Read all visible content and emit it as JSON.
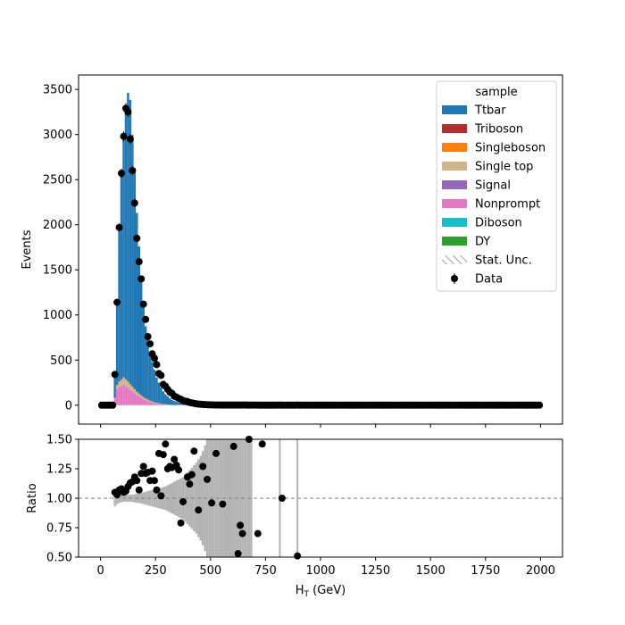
{
  "chart_data": [
    {
      "type": "bar",
      "stacked": true,
      "ylabel": "Events",
      "xlim": [
        -100,
        2100
      ],
      "ylim": [
        -210,
        3660
      ],
      "xticks": [
        0,
        250,
        500,
        750,
        1000,
        1250,
        1500,
        1750,
        2000
      ],
      "yticks": [
        0,
        500,
        1000,
        1500,
        2000,
        2500,
        3000,
        3500
      ],
      "bin_width": 10,
      "bin_centers": [
        65,
        75,
        85,
        95,
        105,
        115,
        125,
        135,
        145,
        155,
        165,
        175,
        185,
        195,
        205,
        215,
        225,
        235,
        245,
        255,
        265,
        275,
        285,
        295,
        305,
        315,
        325,
        335,
        345,
        355,
        365,
        375,
        385,
        395
      ],
      "series": [
        {
          "name": "Nonprompt",
          "color": "#e377c2",
          "values": [
            70,
            180,
            200,
            210,
            230,
            210,
            190,
            170,
            150,
            130,
            110,
            95,
            80,
            65,
            55,
            45,
            37,
            30,
            24,
            19,
            15,
            12,
            9,
            7,
            5,
            4,
            3,
            2,
            2,
            1,
            1,
            1,
            0,
            0
          ]
        },
        {
          "name": "Single top",
          "color": "#d2b48c",
          "values": [
            10,
            40,
            60,
            70,
            75,
            72,
            68,
            60,
            52,
            45,
            38,
            32,
            26,
            22,
            18,
            15,
            12,
            10,
            8,
            6,
            5,
            4,
            3,
            3,
            2,
            2,
            1,
            1,
            1,
            1,
            0,
            0,
            0,
            0
          ]
        },
        {
          "name": "Singleboson",
          "color": "#ff7f0e",
          "values": [
            2,
            4,
            5,
            6,
            6,
            6,
            5,
            5,
            4,
            4,
            3,
            3,
            3,
            2,
            2,
            2,
            2,
            1,
            1,
            1,
            1,
            1,
            1,
            1,
            0,
            0,
            0,
            0,
            0,
            0,
            0,
            0,
            0,
            0
          ]
        },
        {
          "name": "Ttbar",
          "color": "#1f77b4",
          "values": [
            270,
            930,
            1730,
            2310,
            2710,
            2950,
            3200,
            3150,
            2790,
            2450,
            1980,
            1630,
            1320,
            1060,
            800,
            660,
            520,
            440,
            360,
            280,
            230,
            180,
            140,
            110,
            90,
            70,
            55,
            45,
            35,
            28,
            22,
            17,
            12,
            8
          ]
        }
      ],
      "data_points": {
        "name": "Data",
        "x": [
          5,
          15,
          25,
          35,
          45,
          55,
          65,
          75,
          85,
          95,
          105,
          115,
          125,
          135,
          145,
          155,
          165,
          175,
          185,
          195,
          205,
          215,
          225,
          235,
          245,
          255,
          265,
          275,
          285,
          295,
          305,
          315,
          325,
          335,
          345,
          355,
          365,
          375,
          385,
          395,
          405,
          415,
          425,
          435,
          445,
          455,
          465,
          475,
          485,
          495,
          505,
          515,
          525,
          535,
          545,
          555,
          565,
          575,
          585,
          595,
          605,
          615,
          625,
          635,
          645,
          655,
          665,
          675,
          685,
          695,
          705,
          715,
          725,
          735,
          745,
          755,
          765,
          775,
          785,
          795,
          805,
          815,
          825,
          835,
          845,
          855,
          865,
          875,
          885,
          895,
          905,
          915,
          925,
          935,
          945,
          955,
          965,
          975,
          985,
          995,
          1005,
          1015,
          1025,
          1035,
          1045,
          1055,
          1065,
          1075,
          1085,
          1095,
          1105,
          1115,
          1125,
          1135,
          1145,
          1155,
          1165,
          1175,
          1185,
          1195,
          1205,
          1215,
          1225,
          1235,
          1245,
          1255,
          1265,
          1275,
          1285,
          1295,
          1305,
          1315,
          1325,
          1335,
          1345,
          1355,
          1365,
          1375,
          1385,
          1395,
          1405,
          1415,
          1425,
          1435,
          1445,
          1455,
          1465,
          1475,
          1485,
          1495,
          1505,
          1515,
          1525,
          1535,
          1545,
          1555,
          1565,
          1575,
          1585,
          1595,
          1605,
          1615,
          1625,
          1635,
          1645,
          1655,
          1665,
          1675,
          1685,
          1695,
          1705,
          1715,
          1725,
          1735,
          1745,
          1755,
          1765,
          1775,
          1785,
          1795,
          1805,
          1815,
          1825,
          1835,
          1845,
          1855,
          1865,
          1875,
          1885,
          1895,
          1905,
          1915,
          1925,
          1935,
          1945,
          1955,
          1965,
          1975,
          1985,
          1995
        ],
        "y": [
          0,
          0,
          0,
          0,
          0,
          0,
          340,
          1140,
          1970,
          2570,
          2980,
          3290,
          3250,
          2950,
          2600,
          2240,
          1850,
          1590,
          1400,
          1120,
          950,
          760,
          680,
          570,
          520,
          450,
          350,
          330,
          230,
          210,
          175,
          145,
          130,
          100,
          90,
          75,
          65,
          50,
          45,
          40,
          30,
          25,
          20,
          15,
          12,
          10,
          8,
          6,
          5,
          4,
          3,
          3,
          2,
          2,
          1,
          1,
          1,
          1,
          1,
          1,
          1,
          1,
          1,
          1,
          1,
          1,
          1,
          0,
          1,
          0,
          1,
          0,
          0,
          0,
          0,
          0,
          0,
          0,
          0,
          0,
          0,
          1,
          0,
          0,
          0,
          0,
          0,
          0,
          0,
          1,
          0,
          0,
          0,
          0,
          0,
          0,
          0,
          0,
          0,
          0,
          0,
          0,
          0,
          0,
          0,
          0,
          0,
          0,
          0,
          0,
          0,
          0,
          0,
          0,
          0,
          0,
          0,
          0,
          0,
          0,
          0,
          0,
          0,
          0,
          0,
          0,
          0,
          0,
          0,
          0,
          0,
          0,
          0,
          0,
          0,
          0,
          0,
          0,
          0,
          0,
          0,
          0,
          0,
          0,
          0,
          0,
          0,
          0,
          0,
          0,
          0,
          0,
          0,
          0,
          0,
          0,
          0,
          0,
          0,
          0,
          0,
          0,
          0,
          0,
          0,
          0,
          0,
          0,
          0,
          0,
          0,
          0,
          0,
          0,
          0,
          0,
          0,
          0,
          0,
          0,
          0,
          0,
          0,
          0,
          0,
          0,
          0,
          0,
          0,
          0,
          0,
          0,
          0,
          0,
          0,
          0,
          0,
          0,
          0,
          0
        ]
      },
      "legend": {
        "title": "sample",
        "placement": "top-right",
        "entries": [
          {
            "label": "Ttbar",
            "color": "#1f77b4",
            "kind": "patch"
          },
          {
            "label": "Triboson",
            "color": "#b22c2c",
            "kind": "patch"
          },
          {
            "label": "Singleboson",
            "color": "#ff7f0e",
            "kind": "patch"
          },
          {
            "label": "Single top",
            "color": "#d2b48c",
            "kind": "patch"
          },
          {
            "label": "Signal",
            "color": "#9467bd",
            "kind": "patch"
          },
          {
            "label": "Nonprompt",
            "color": "#e377c2",
            "kind": "patch"
          },
          {
            "label": "Diboson",
            "color": "#17becf",
            "kind": "patch"
          },
          {
            "label": "DY",
            "color": "#2ca02c",
            "kind": "patch"
          },
          {
            "label": "Stat. Unc.",
            "color": "#888888",
            "kind": "hatch"
          },
          {
            "label": "Data",
            "color": "#000000",
            "kind": "marker"
          }
        ]
      }
    },
    {
      "type": "scatter",
      "ylabel": "Ratio",
      "xlabel_main": "H",
      "xlabel_sub": "T",
      "xlabel_unit": " (GeV)",
      "xlim": [
        -100,
        2100
      ],
      "ylim": [
        0.5,
        1.5
      ],
      "xticks": [
        0,
        250,
        500,
        750,
        1000,
        1250,
        1500,
        1750,
        2000
      ],
      "yticks": [
        0.5,
        0.75,
        1.0,
        1.25,
        1.5
      ],
      "ytick_labels": [
        "0.50",
        "0.75",
        "1.00",
        "1.25",
        "1.50"
      ],
      "reference_line": 1.0,
      "unc_band": {
        "color": "#b3b3b3",
        "x": [
          65,
          75,
          85,
          95,
          105,
          115,
          125,
          135,
          145,
          155,
          165,
          175,
          185,
          195,
          205,
          215,
          225,
          235,
          245,
          255,
          265,
          275,
          285,
          295,
          305,
          315,
          325,
          335,
          345,
          355,
          365,
          375,
          385,
          395,
          405,
          415,
          425,
          435,
          445,
          455,
          465,
          475,
          485,
          495,
          505,
          515,
          525,
          535,
          545,
          555,
          565,
          575,
          585,
          595,
          605,
          615,
          625,
          635,
          645,
          655,
          665,
          675,
          685,
          815,
          895
        ],
        "half_width": [
          0.07,
          0.05,
          0.04,
          0.035,
          0.03,
          0.03,
          0.03,
          0.03,
          0.03,
          0.035,
          0.04,
          0.04,
          0.045,
          0.05,
          0.055,
          0.06,
          0.065,
          0.07,
          0.075,
          0.08,
          0.085,
          0.09,
          0.095,
          0.1,
          0.11,
          0.12,
          0.13,
          0.14,
          0.15,
          0.16,
          0.17,
          0.18,
          0.2,
          0.22,
          0.24,
          0.26,
          0.28,
          0.3,
          0.33,
          0.36,
          0.4,
          0.45,
          0.5,
          0.5,
          0.5,
          0.5,
          0.5,
          0.5,
          0.5,
          0.5,
          0.5,
          0.5,
          0.5,
          0.5,
          0.5,
          0.5,
          0.5,
          0.5,
          0.5,
          0.5,
          0.5,
          0.5,
          0.5,
          0.6,
          0.6
        ]
      },
      "points": {
        "x": [
          65,
          75,
          85,
          95,
          105,
          115,
          125,
          135,
          145,
          155,
          165,
          175,
          185,
          195,
          205,
          215,
          225,
          235,
          245,
          255,
          265,
          275,
          285,
          295,
          305,
          315,
          325,
          335,
          345,
          355,
          365,
          375,
          395,
          405,
          415,
          425,
          445,
          465,
          485,
          505,
          525,
          555,
          605,
          625,
          635,
          645,
          675,
          715,
          735,
          825,
          895
        ],
        "y": [
          1.05,
          1.03,
          1.07,
          1.08,
          1.05,
          1.06,
          1.1,
          1.13,
          1.14,
          1.18,
          1.15,
          1.07,
          1.21,
          1.27,
          1.21,
          1.22,
          1.15,
          1.23,
          1.15,
          1.07,
          1.38,
          1.02,
          1.37,
          1.46,
          1.25,
          1.27,
          1.26,
          1.33,
          1.28,
          1.24,
          0.79,
          0.97,
          1.18,
          1.12,
          1.2,
          1.4,
          0.9,
          1.27,
          1.16,
          0.96,
          1.38,
          0.95,
          1.44,
          0.53,
          0.77,
          0.7,
          1.5,
          0.7,
          1.46,
          1.0,
          0.51
        ]
      }
    }
  ]
}
